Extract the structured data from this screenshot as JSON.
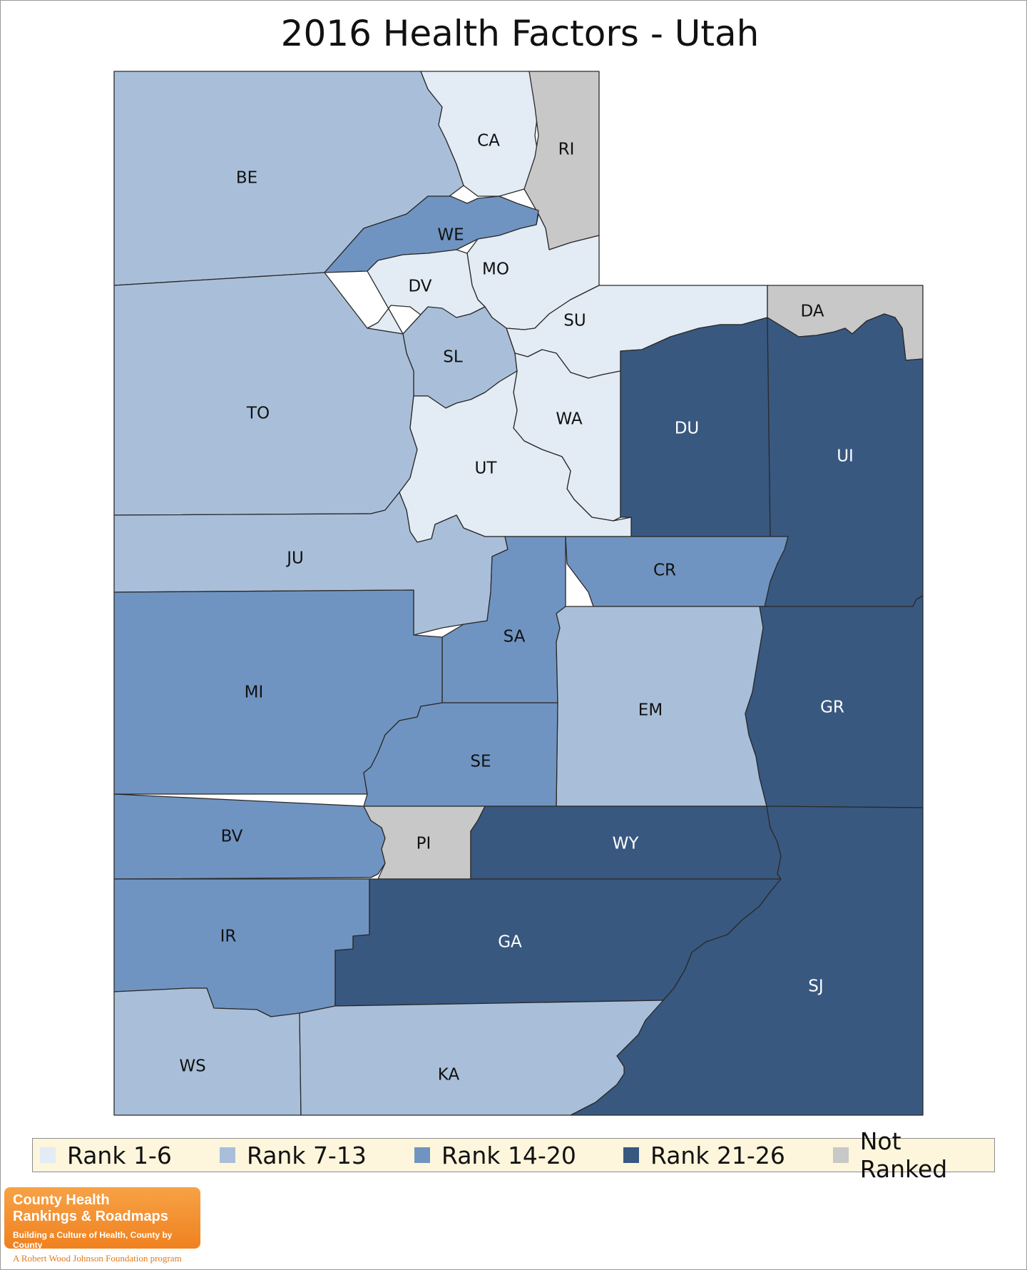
{
  "title": "2016 Health Factors - Utah",
  "colors": {
    "rank_1_6": "#e3ebf4",
    "rank_7_13": "#a9bfd9",
    "rank_14_20": "#7094c1",
    "rank_21_26": "#385880",
    "not_ranked": "#c8c8c8",
    "label_dark": "#111111",
    "label_light": "#ffffff"
  },
  "legend": [
    {
      "label": "Rank 1-6",
      "color": "#e3ebf4"
    },
    {
      "label": "Rank 7-13",
      "color": "#a9bfd9"
    },
    {
      "label": "Rank 14-20",
      "color": "#7094c1"
    },
    {
      "label": "Rank 21-26",
      "color": "#385880"
    },
    {
      "label": "Not Ranked",
      "color": "#c8c8c8"
    }
  ],
  "counties": [
    {
      "code": "BE",
      "rank_group": "Rank 7-13"
    },
    {
      "code": "CA",
      "rank_group": "Rank 1-6"
    },
    {
      "code": "RI",
      "rank_group": "Not Ranked"
    },
    {
      "code": "WE",
      "rank_group": "Rank 14-20"
    },
    {
      "code": "MO",
      "rank_group": "Rank 1-6"
    },
    {
      "code": "DV",
      "rank_group": "Rank 1-6"
    },
    {
      "code": "SU",
      "rank_group": "Rank 1-6"
    },
    {
      "code": "DA",
      "rank_group": "Not Ranked"
    },
    {
      "code": "SL",
      "rank_group": "Rank 7-13"
    },
    {
      "code": "TO",
      "rank_group": "Rank 7-13"
    },
    {
      "code": "WA",
      "rank_group": "Rank 1-6"
    },
    {
      "code": "DU",
      "rank_group": "Rank 21-26"
    },
    {
      "code": "UI",
      "rank_group": "Rank 21-26"
    },
    {
      "code": "UT",
      "rank_group": "Rank 1-6"
    },
    {
      "code": "JU",
      "rank_group": "Rank 7-13"
    },
    {
      "code": "CR",
      "rank_group": "Rank 14-20"
    },
    {
      "code": "SA",
      "rank_group": "Rank 14-20"
    },
    {
      "code": "MI",
      "rank_group": "Rank 14-20"
    },
    {
      "code": "EM",
      "rank_group": "Rank 7-13"
    },
    {
      "code": "GR",
      "rank_group": "Rank 21-26"
    },
    {
      "code": "SE",
      "rank_group": "Rank 14-20"
    },
    {
      "code": "BV",
      "rank_group": "Rank 14-20"
    },
    {
      "code": "PI",
      "rank_group": "Not Ranked"
    },
    {
      "code": "WY",
      "rank_group": "Rank 21-26"
    },
    {
      "code": "IR",
      "rank_group": "Rank 14-20"
    },
    {
      "code": "GA",
      "rank_group": "Rank 21-26"
    },
    {
      "code": "SJ",
      "rank_group": "Rank 21-26"
    },
    {
      "code": "WS",
      "rank_group": "Rank 7-13"
    },
    {
      "code": "KA",
      "rank_group": "Rank 7-13"
    }
  ],
  "logo": {
    "line1": "County Health",
    "line2": "Rankings & Roadmaps",
    "tagline": "Building a Culture of Health, County by County",
    "program": "A Robert Wood Johnson Foundation program"
  }
}
